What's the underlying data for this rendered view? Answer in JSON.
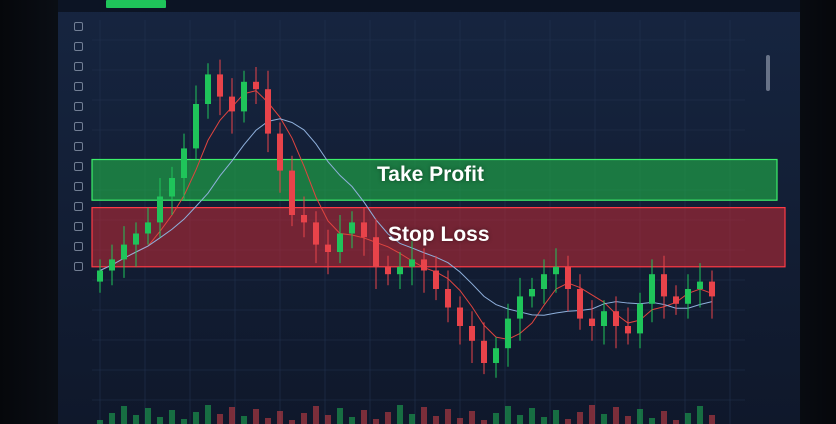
{
  "colors": {
    "up": "#1fc45a",
    "down": "#e8434a",
    "take_profit": "#22b54a",
    "stop_loss": "#c42a35",
    "ma_fast": "#e0443f",
    "ma_slow": "#8fb0dc",
    "background": "#14213a"
  },
  "icons": [
    "home-icon",
    "chart-icon",
    "crosshair-icon",
    "trend-line-icon",
    "fib-icon",
    "shapes-icon",
    "text-icon",
    "measure-icon",
    "zoom-icon",
    "magnet-icon",
    "lock-icon",
    "eye-icon",
    "trash-icon"
  ],
  "chart_data": {
    "type": "candlestick",
    "title": "",
    "xlabel": "",
    "ylabel": "",
    "ylim": [
      0,
      100
    ],
    "grid": true,
    "closes": [
      35,
      38,
      42,
      45,
      48,
      55,
      60,
      68,
      80,
      88,
      82,
      78,
      86,
      84,
      72,
      62,
      50,
      48,
      42,
      40,
      45,
      48,
      44,
      36,
      34,
      36,
      38,
      35,
      30,
      25,
      20,
      16,
      10,
      14,
      22,
      28,
      30,
      34,
      36,
      30,
      22,
      20,
      24,
      20,
      18,
      26,
      34,
      28,
      26,
      30,
      32,
      28
    ],
    "annotations": [
      {
        "label": "Take Profit",
        "range": [
          54,
          65
        ],
        "color": "#22b54a"
      },
      {
        "label": "Stop Loss",
        "range": [
          36,
          52
        ],
        "color": "#c42a35"
      }
    ]
  }
}
